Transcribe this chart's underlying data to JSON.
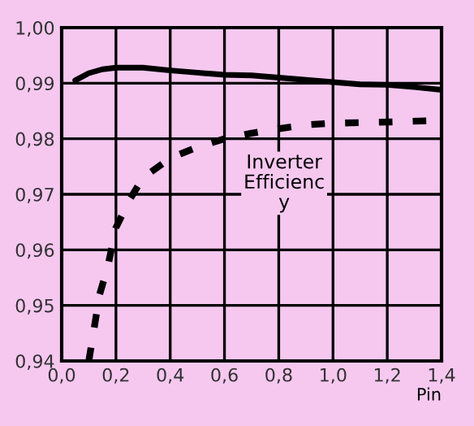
{
  "chart_data": {
    "type": "line",
    "xlabel": "Pin",
    "annotations": [
      "Inverter\nEfficienc\ny"
    ],
    "xlim": [
      0,
      1.4
    ],
    "ylim": [
      0.94,
      1.0
    ],
    "xticks": [
      {
        "value": 0,
        "label": "0,0"
      },
      {
        "value": 0.2,
        "label": "0,2"
      },
      {
        "value": 0.4,
        "label": "0,4"
      },
      {
        "value": 0.6,
        "label": "0,6"
      },
      {
        "value": 0.8,
        "label": "0,8"
      },
      {
        "value": 1.0,
        "label": "1,0"
      },
      {
        "value": 1.2,
        "label": "1,2"
      },
      {
        "value": 1.4,
        "label": "1,4"
      }
    ],
    "yticks": [
      {
        "value": 0.94,
        "label": "0,94"
      },
      {
        "value": 0.95,
        "label": "0,95"
      },
      {
        "value": 0.96,
        "label": "0,96"
      },
      {
        "value": 0.97,
        "label": "0,97"
      },
      {
        "value": 0.98,
        "label": "0,98"
      },
      {
        "value": 0.99,
        "label": "0,99"
      },
      {
        "value": 1.0,
        "label": "1,00"
      }
    ],
    "grid": true,
    "legend": false,
    "series": [
      {
        "color": "#000000",
        "line_style": "solid",
        "x": [
          0.05,
          0.1,
          0.15,
          0.2,
          0.3,
          0.4,
          0.5,
          0.6,
          0.7,
          0.8,
          0.9,
          1.0,
          1.1,
          1.2,
          1.3,
          1.4
        ],
        "values": [
          0.9905,
          0.9918,
          0.9925,
          0.9928,
          0.9928,
          0.9923,
          0.9919,
          0.9915,
          0.9914,
          0.991,
          0.9906,
          0.9902,
          0.9898,
          0.9897,
          0.9893,
          0.9888
        ]
      },
      {
        "color": "#000000",
        "line_style": "dashed",
        "x": [
          0.1,
          0.12,
          0.14,
          0.17,
          0.2,
          0.25,
          0.3,
          0.4,
          0.5,
          0.6,
          0.7,
          0.8,
          0.9,
          1.0,
          1.2,
          1.4
        ],
        "values": [
          0.94,
          0.946,
          0.952,
          0.957,
          0.964,
          0.969,
          0.973,
          0.9765,
          0.9785,
          0.98,
          0.981,
          0.9818,
          0.9825,
          0.9828,
          0.983,
          0.9833
        ]
      }
    ]
  }
}
